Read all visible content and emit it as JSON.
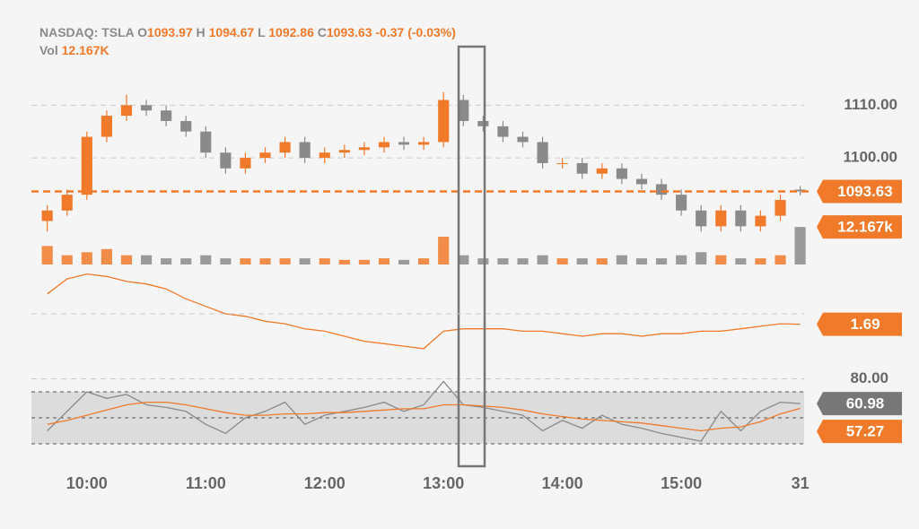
{
  "header": {
    "symbol": "NASDAQ: TSLA",
    "o_key": "O",
    "open": "1093.97",
    "h_key": "H",
    "high": "1094.67",
    "l_key": "L",
    "low": "1092.86",
    "c_key": "C",
    "close": "1093.63",
    "change": "-0.37",
    "change_pct": "(-0.03%)",
    "vol_key": "Vol",
    "volume": "12.167K"
  },
  "chart_data": {
    "type": "candlestick",
    "x": [
      580,
      590,
      600,
      610,
      620,
      630,
      640,
      650,
      660,
      670,
      680,
      690,
      700,
      710,
      720,
      730,
      740,
      750,
      760,
      770,
      780,
      790,
      800,
      810,
      820,
      830,
      840,
      850,
      860,
      870,
      880,
      890,
      900,
      910,
      920,
      930,
      940,
      950,
      960
    ],
    "xlim": [
      572,
      962
    ],
    "xticks": [
      {
        "value": 600,
        "label": "10:00"
      },
      {
        "value": 660,
        "label": "11:00"
      },
      {
        "value": 720,
        "label": "12:00"
      },
      {
        "value": 780,
        "label": "13:00"
      },
      {
        "value": 840,
        "label": "14:00"
      },
      {
        "value": 900,
        "label": "15:00"
      },
      {
        "value": 960,
        "label": "31"
      }
    ],
    "up_color": "#f07a2a",
    "down_color": "#8a8a8a",
    "open": [
      1088,
      1090,
      1093,
      1104,
      1108,
      1110,
      1109,
      1107,
      1105,
      1101,
      1098,
      1100,
      1101,
      1103,
      1100,
      1101,
      1101.5,
      1102,
      1103,
      1102.5,
      1103,
      1111,
      1107,
      1106,
      1104,
      1103,
      1099,
      1099,
      1097,
      1098,
      1096,
      1095,
      1093,
      1090,
      1087,
      1090,
      1087,
      1089,
      1093.97
    ],
    "high": [
      1091,
      1094,
      1105,
      1109,
      1112,
      1111,
      1110,
      1108,
      1106,
      1102,
      1101,
      1102,
      1104,
      1104,
      1102,
      1102.5,
      1103,
      1104,
      1104,
      1104,
      1112.5,
      1112,
      1108,
      1107,
      1105,
      1104,
      1100,
      1100,
      1099,
      1099,
      1097,
      1096,
      1094,
      1091,
      1091,
      1091,
      1090,
      1093,
      1094.67
    ],
    "low": [
      1086,
      1089,
      1092,
      1103,
      1107,
      1108,
      1106,
      1104,
      1100,
      1097,
      1097,
      1099,
      1100,
      1099,
      1099,
      1100,
      1100.5,
      1101,
      1101.5,
      1101.5,
      1102,
      1106,
      1105,
      1103,
      1102,
      1098,
      1098,
      1096,
      1096,
      1095,
      1094,
      1092,
      1089,
      1086,
      1086,
      1086,
      1086,
      1088,
      1092.86
    ],
    "close": [
      1090,
      1093,
      1104,
      1108,
      1110,
      1109,
      1107,
      1105,
      1101,
      1098,
      1100,
      1101,
      1103,
      1100,
      1101,
      1101.5,
      1102,
      1103,
      1102.5,
      1103,
      1111,
      1107,
      1106,
      1104,
      1103,
      1099,
      1099,
      1097,
      1098,
      1096,
      1095,
      1093,
      1090,
      1087,
      1090,
      1087,
      1089,
      1092,
      1093.63
    ],
    "ylim": [
      1084,
      1115
    ],
    "yticks": [
      {
        "value": 1110,
        "label": "1110.00"
      },
      {
        "value": 1100,
        "label": "1100.00"
      }
    ],
    "volume": {
      "values": [
        6,
        3,
        4,
        5,
        3,
        3,
        2,
        2,
        3,
        2,
        2,
        2,
        2,
        2,
        2,
        1.5,
        1.5,
        2,
        1.5,
        2,
        9,
        3,
        2,
        2,
        2,
        3,
        2,
        2,
        2,
        3,
        2,
        2,
        3,
        4,
        3,
        2,
        2,
        3,
        12.167
      ],
      "last_label": "12.167k",
      "ylim": [
        0,
        12.5
      ]
    },
    "indicator": {
      "color": "#f07a2a",
      "values": [
        2.3,
        2.6,
        2.7,
        2.65,
        2.55,
        2.5,
        2.4,
        2.2,
        2.05,
        1.9,
        1.85,
        1.75,
        1.7,
        1.6,
        1.55,
        1.45,
        1.35,
        1.3,
        1.25,
        1.2,
        1.55,
        1.6,
        1.6,
        1.6,
        1.55,
        1.55,
        1.5,
        1.45,
        1.5,
        1.5,
        1.45,
        1.5,
        1.5,
        1.55,
        1.55,
        1.6,
        1.65,
        1.7,
        1.69
      ],
      "ylim": [
        1.0,
        2.8
      ]
    },
    "rsi": {
      "ylim": [
        20,
        85
      ],
      "yticks": [
        {
          "value": 80,
          "label": "80.00"
        }
      ],
      "band": [
        30,
        70
      ],
      "midline": 50,
      "series": [
        {
          "color": "#8a8a8a",
          "values": [
            40,
            55,
            70,
            65,
            68,
            60,
            58,
            55,
            45,
            38,
            50,
            55,
            62,
            45,
            52,
            55,
            58,
            62,
            55,
            60,
            78,
            60,
            58,
            55,
            52,
            40,
            48,
            42,
            52,
            45,
            42,
            38,
            35,
            32,
            55,
            40,
            55,
            62,
            60.98
          ]
        },
        {
          "color": "#f07a2a",
          "values": [
            45,
            48,
            52,
            56,
            60,
            62,
            62,
            60,
            57,
            54,
            52,
            52,
            53,
            53,
            54,
            54,
            55,
            56,
            57,
            57,
            60,
            60,
            59,
            58,
            56,
            53,
            51,
            49,
            48,
            47,
            46,
            44,
            42,
            40,
            42,
            43,
            47,
            53,
            57.27
          ]
        }
      ]
    }
  }
}
